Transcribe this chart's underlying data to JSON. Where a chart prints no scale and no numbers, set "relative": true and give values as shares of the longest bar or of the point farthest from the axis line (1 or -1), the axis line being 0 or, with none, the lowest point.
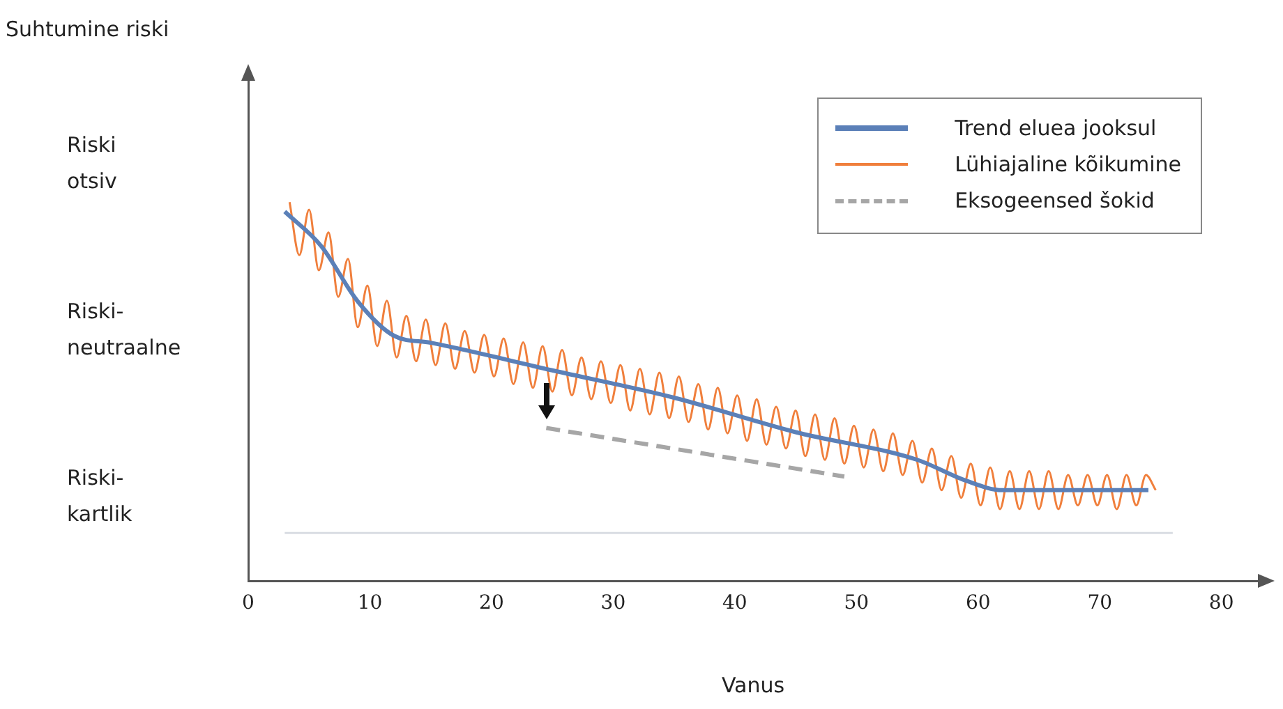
{
  "chart_data": {
    "type": "line",
    "xlabel": "Vanus",
    "ylabel": "Suhtumine riski",
    "relative": true,
    "ylim": [
      0,
      1.32
    ],
    "annotations": [
      "Riski otsiv",
      "Riski-neutraalne",
      "Riski-kartlik"
    ],
    "xlim": [
      0,
      83
    ],
    "xticks": [
      0,
      10,
      20,
      30,
      40,
      50,
      60,
      70,
      80
    ],
    "grid": false,
    "legend": "top right",
    "marker": "none",
    "ref_lines": [
      {
        "axis": "y",
        "value": 0.127,
        "color": "#d9dde3"
      }
    ],
    "series": [
      {
        "name": "Trend eluea jooksul",
        "color": "#5b80b8",
        "line_style": "solid",
        "x": [
          3,
          6,
          9,
          12,
          15,
          25,
          35,
          45,
          55,
          59,
          62,
          74
        ],
        "values": [
          0.975,
          0.884,
          0.738,
          0.647,
          0.629,
          0.556,
          0.484,
          0.393,
          0.32,
          0.265,
          0.24,
          0.24
        ]
      },
      {
        "name": "Lühiajaline kõikumine",
        "color": "#f07f3c",
        "line_style": "solid",
        "x": [
          3.4,
          4.2,
          5.0,
          5.8,
          6.6,
          7.4,
          8.2,
          9.0,
          9.8,
          10.6,
          11.4,
          12.2,
          13.0,
          13.8,
          14.6,
          15.4,
          16.2,
          17.0,
          17.8,
          18.6,
          19.4,
          20.2,
          21.0,
          21.8,
          22.6,
          23.4,
          24.2,
          25.0,
          25.8,
          26.6,
          27.4,
          28.2,
          29.0,
          29.8,
          30.6,
          31.4,
          32.2,
          33.0,
          33.8,
          34.6,
          35.4,
          36.2,
          37.0,
          37.8,
          38.6,
          39.4,
          40.2,
          41.0,
          41.8,
          42.6,
          43.4,
          44.2,
          45.0,
          45.8,
          46.6,
          47.4,
          48.2,
          49.0,
          49.8,
          50.6,
          51.4,
          52.2,
          53.0,
          53.8,
          54.6,
          55.4,
          56.2,
          57.0,
          57.8,
          58.6,
          59.4,
          60.2,
          61.0,
          61.8,
          62.6,
          63.4,
          64.2,
          65.0,
          65.8,
          66.6,
          67.4,
          68.2,
          69.0,
          69.8,
          70.6,
          71.4,
          72.2,
          73.0,
          73.8,
          74.6
        ],
        "values": [
          1.0,
          0.86,
          0.98,
          0.82,
          0.92,
          0.75,
          0.85,
          0.67,
          0.78,
          0.62,
          0.74,
          0.59,
          0.7,
          0.58,
          0.69,
          0.57,
          0.68,
          0.56,
          0.66,
          0.55,
          0.65,
          0.54,
          0.64,
          0.52,
          0.63,
          0.51,
          0.62,
          0.5,
          0.61,
          0.49,
          0.59,
          0.48,
          0.58,
          0.47,
          0.57,
          0.45,
          0.56,
          0.44,
          0.55,
          0.43,
          0.54,
          0.42,
          0.52,
          0.4,
          0.51,
          0.39,
          0.49,
          0.37,
          0.48,
          0.36,
          0.46,
          0.35,
          0.45,
          0.33,
          0.44,
          0.32,
          0.43,
          0.31,
          0.41,
          0.3,
          0.4,
          0.29,
          0.39,
          0.28,
          0.37,
          0.26,
          0.35,
          0.24,
          0.33,
          0.22,
          0.31,
          0.2,
          0.3,
          0.19,
          0.29,
          0.19,
          0.29,
          0.19,
          0.29,
          0.19,
          0.28,
          0.2,
          0.28,
          0.2,
          0.28,
          0.19,
          0.28,
          0.2,
          0.28,
          0.24
        ]
      },
      {
        "name": "Eksogeensed šokid",
        "color": "#a6a6a6",
        "line_style": "dashed",
        "x": [
          24.5,
          49
        ],
        "values": [
          0.404,
          0.276
        ]
      }
    ]
  }
}
